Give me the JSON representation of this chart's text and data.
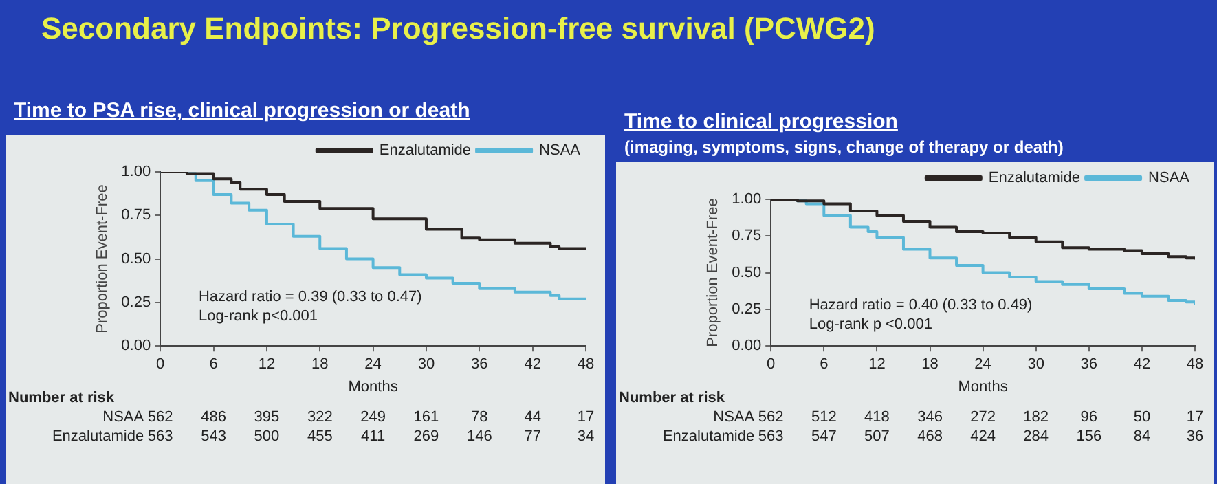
{
  "chart_data": [
    {
      "type": "step",
      "title": "Secondary Endpoints: Progression-free survival (PCWG2)",
      "subtitle": "Time to PSA rise, clinical progression or death",
      "xlabel": "Months",
      "ylabel": "Proportion Event-Free",
      "xlim": [
        0,
        48
      ],
      "xticks": [
        0,
        6,
        12,
        18,
        24,
        30,
        36,
        42,
        48
      ],
      "ylim": [
        0,
        1
      ],
      "yticks": [
        {
          "value": 0,
          "label": "0.00"
        },
        {
          "value": 0.25,
          "label": "0.25"
        },
        {
          "value": 0.5,
          "label": "0.50"
        },
        {
          "value": 0.75,
          "label": "0.75"
        },
        {
          "value": 1,
          "label": "1.00"
        }
      ],
      "legend": "top right",
      "grid": false,
      "series": [
        {
          "name": "Enzalutamide",
          "color": "#2b2523",
          "x": [
            0,
            3,
            6,
            8,
            9,
            12,
            14,
            18,
            24,
            30,
            34,
            36,
            40,
            44,
            45,
            48
          ],
          "values": [
            1.0,
            0.99,
            0.96,
            0.94,
            0.9,
            0.87,
            0.83,
            0.79,
            0.73,
            0.67,
            0.62,
            0.61,
            0.59,
            0.57,
            0.56,
            0.56
          ]
        },
        {
          "name": "NSAA",
          "color": "#5bb8d8",
          "x": [
            0,
            3,
            4,
            6,
            8,
            10,
            12,
            15,
            18,
            21,
            24,
            27,
            30,
            33,
            36,
            40,
            44,
            45,
            48
          ],
          "values": [
            1.0,
            0.99,
            0.95,
            0.87,
            0.82,
            0.78,
            0.7,
            0.63,
            0.56,
            0.5,
            0.45,
            0.41,
            0.39,
            0.36,
            0.33,
            0.31,
            0.29,
            0.27,
            0.27
          ]
        }
      ],
      "annotations": [
        "Hazard ratio = 0.39 (0.33 to 0.47)",
        "Log-rank p<0.001",
        "Number at risk",
        "NSAA 562 486 395 322 249 161 78 44 17",
        "Enzalutamide 563 543 500 455 411 269 146 77 34"
      ]
    },
    {
      "type": "step",
      "title": "Time to clinical progression",
      "subtitle": "(imaging, symptoms, signs, change of therapy or death)",
      "xlabel": "Months",
      "ylabel": "Proportion Event-Free",
      "xlim": [
        0,
        48
      ],
      "xticks": [
        0,
        6,
        12,
        18,
        24,
        30,
        36,
        42,
        48
      ],
      "ylim": [
        0,
        1
      ],
      "yticks": [
        {
          "value": 0,
          "label": "0.00"
        },
        {
          "value": 0.25,
          "label": "0.25"
        },
        {
          "value": 0.5,
          "label": "0.50"
        },
        {
          "value": 0.75,
          "label": "0.75"
        },
        {
          "value": 1,
          "label": "1.00"
        }
      ],
      "legend": "top right",
      "grid": false,
      "series": [
        {
          "name": "Enzalutamide",
          "color": "#2b2523",
          "x": [
            0,
            3,
            6,
            9,
            12,
            15,
            18,
            21,
            24,
            27,
            30,
            33,
            36,
            40,
            42,
            45,
            47,
            48
          ],
          "values": [
            1.0,
            0.99,
            0.97,
            0.92,
            0.89,
            0.85,
            0.81,
            0.78,
            0.77,
            0.74,
            0.71,
            0.67,
            0.66,
            0.65,
            0.63,
            0.61,
            0.6,
            0.59
          ]
        },
        {
          "name": "NSAA",
          "color": "#5bb8d8",
          "x": [
            0,
            3,
            4,
            6,
            9,
            11,
            12,
            15,
            18,
            21,
            24,
            27,
            30,
            33,
            36,
            40,
            42,
            45,
            47,
            48
          ],
          "values": [
            1.0,
            0.99,
            0.97,
            0.89,
            0.81,
            0.78,
            0.74,
            0.66,
            0.6,
            0.55,
            0.5,
            0.47,
            0.44,
            0.42,
            0.39,
            0.36,
            0.34,
            0.31,
            0.3,
            0.28
          ]
        }
      ],
      "annotations": [
        "Hazard ratio = 0.40 (0.33 to 0.49)",
        "Log-rank p <0.001",
        "Number at risk",
        "NSAA 562 512 418 346 272 182 96 50 17",
        "Enzalutamide 563 547 507 468 424 284 156 84 36"
      ]
    }
  ]
}
